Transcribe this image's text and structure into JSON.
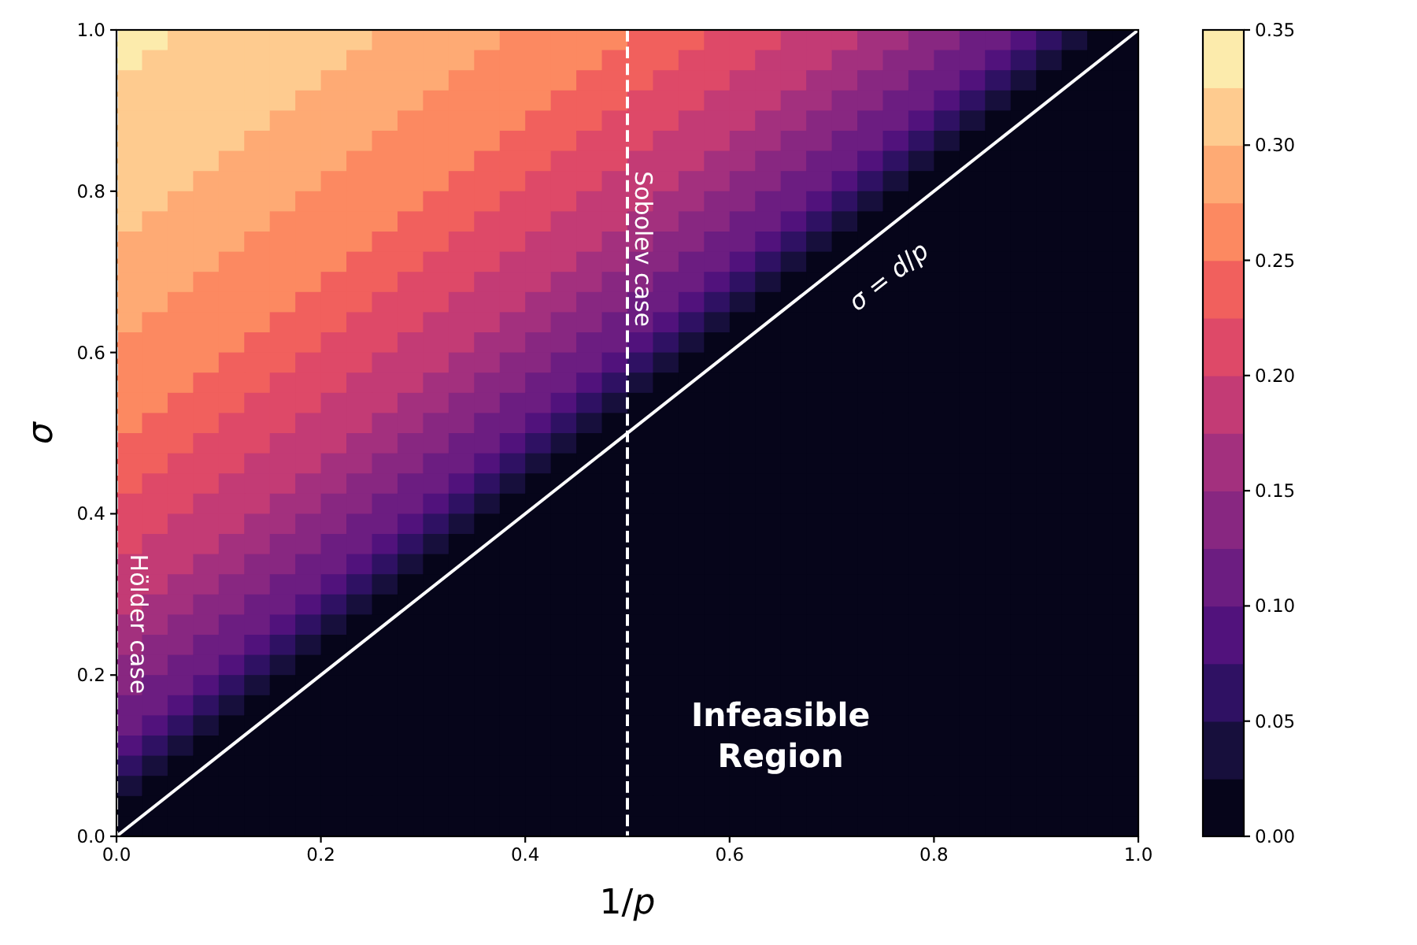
{
  "chart_data": {
    "type": "heatmap",
    "xlabel": "1/p",
    "ylabel": "σ",
    "x": [
      0.0125,
      0.0375,
      0.0625,
      0.0875,
      0.1125,
      0.1375,
      0.1625,
      0.1875,
      0.2125,
      0.2375,
      0.2625,
      0.2875,
      0.3125,
      0.3375,
      0.3625,
      0.3875,
      0.4125,
      0.4375,
      0.4625,
      0.4875,
      0.5125,
      0.5375,
      0.5625,
      0.5875,
      0.6125,
      0.6375,
      0.6625,
      0.6875,
      0.7125,
      0.7375,
      0.7625,
      0.7875,
      0.8125,
      0.8375,
      0.8625,
      0.8875,
      0.9125,
      0.9375,
      0.9625,
      0.9875
    ],
    "y": [
      0.9875,
      0.9625,
      0.9375,
      0.9125,
      0.8875,
      0.8625,
      0.8375,
      0.8125,
      0.7875,
      0.7625,
      0.7375,
      0.7125,
      0.6875,
      0.6625,
      0.6375,
      0.6125,
      0.5875,
      0.5625,
      0.5375,
      0.5125,
      0.4875,
      0.4625,
      0.4375,
      0.4125,
      0.3875,
      0.3625,
      0.3375,
      0.3125,
      0.2875,
      0.2625,
      0.2375,
      0.2125,
      0.1875,
      0.1625,
      0.1375,
      0.1125,
      0.0875,
      0.0625,
      0.0375,
      0.0125
    ],
    "cells": [
      [
        0.33,
        0.33,
        0.32,
        0.32,
        0.32,
        0.31,
        0.31,
        0.31,
        0.3,
        0.3,
        0.29,
        0.29,
        0.29,
        0.28,
        0.28,
        0.27,
        0.27,
        0.26,
        0.26,
        0.25,
        0.24,
        0.24,
        0.23,
        0.22,
        0.21,
        0.21,
        0.19,
        0.19,
        0.18,
        0.17,
        0.16,
        0.14,
        0.13,
        0.12,
        0.1,
        0.08,
        0.07,
        0.04,
        0.02,
        0
      ],
      [
        0.33,
        0.32,
        0.32,
        0.32,
        0.31,
        0.31,
        0.31,
        0.3,
        0.3,
        0.29,
        0.29,
        0.29,
        0.28,
        0.28,
        0.27,
        0.27,
        0.26,
        0.26,
        0.25,
        0.24,
        0.24,
        0.23,
        0.22,
        0.21,
        0.21,
        0.19,
        0.19,
        0.18,
        0.17,
        0.16,
        0.14,
        0.13,
        0.12,
        0.1,
        0.08,
        0.07,
        0.04,
        0.02,
        0,
        0
      ],
      [
        0.32,
        0.32,
        0.32,
        0.31,
        0.31,
        0.31,
        0.3,
        0.3,
        0.29,
        0.29,
        0.29,
        0.28,
        0.28,
        0.27,
        0.27,
        0.26,
        0.26,
        0.25,
        0.24,
        0.24,
        0.23,
        0.22,
        0.21,
        0.21,
        0.19,
        0.19,
        0.18,
        0.17,
        0.16,
        0.14,
        0.13,
        0.12,
        0.1,
        0.08,
        0.07,
        0.04,
        0.02,
        0,
        0,
        0
      ],
      [
        0.32,
        0.32,
        0.31,
        0.31,
        0.31,
        0.3,
        0.3,
        0.29,
        0.29,
        0.29,
        0.28,
        0.28,
        0.27,
        0.27,
        0.26,
        0.26,
        0.25,
        0.24,
        0.24,
        0.23,
        0.22,
        0.21,
        0.21,
        0.19,
        0.19,
        0.18,
        0.17,
        0.16,
        0.14,
        0.13,
        0.12,
        0.1,
        0.08,
        0.07,
        0.04,
        0.02,
        0,
        0,
        0,
        0
      ],
      [
        0.32,
        0.31,
        0.31,
        0.31,
        0.3,
        0.3,
        0.29,
        0.29,
        0.29,
        0.28,
        0.28,
        0.27,
        0.27,
        0.26,
        0.26,
        0.25,
        0.24,
        0.24,
        0.23,
        0.22,
        0.21,
        0.21,
        0.19,
        0.19,
        0.18,
        0.17,
        0.16,
        0.14,
        0.13,
        0.12,
        0.1,
        0.08,
        0.07,
        0.04,
        0.02,
        0,
        0,
        0,
        0,
        0
      ],
      [
        0.31,
        0.31,
        0.31,
        0.3,
        0.3,
        0.29,
        0.29,
        0.29,
        0.28,
        0.28,
        0.27,
        0.27,
        0.26,
        0.26,
        0.25,
        0.24,
        0.24,
        0.23,
        0.22,
        0.21,
        0.21,
        0.19,
        0.19,
        0.18,
        0.17,
        0.16,
        0.14,
        0.13,
        0.12,
        0.1,
        0.08,
        0.07,
        0.04,
        0.02,
        0,
        0,
        0,
        0,
        0,
        0
      ],
      [
        0.31,
        0.31,
        0.3,
        0.3,
        0.29,
        0.29,
        0.29,
        0.28,
        0.28,
        0.27,
        0.27,
        0.26,
        0.26,
        0.25,
        0.24,
        0.24,
        0.23,
        0.22,
        0.21,
        0.21,
        0.19,
        0.19,
        0.18,
        0.17,
        0.16,
        0.14,
        0.13,
        0.12,
        0.1,
        0.08,
        0.07,
        0.04,
        0.02,
        0,
        0,
        0,
        0,
        0,
        0,
        0
      ],
      [
        0.31,
        0.3,
        0.3,
        0.29,
        0.29,
        0.29,
        0.28,
        0.28,
        0.27,
        0.27,
        0.26,
        0.26,
        0.25,
        0.24,
        0.24,
        0.23,
        0.22,
        0.21,
        0.21,
        0.19,
        0.19,
        0.18,
        0.17,
        0.16,
        0.14,
        0.13,
        0.12,
        0.1,
        0.08,
        0.07,
        0.04,
        0.02,
        0,
        0,
        0,
        0,
        0,
        0,
        0,
        0
      ],
      [
        0.3,
        0.3,
        0.29,
        0.29,
        0.29,
        0.28,
        0.28,
        0.27,
        0.27,
        0.26,
        0.26,
        0.25,
        0.24,
        0.24,
        0.23,
        0.22,
        0.21,
        0.21,
        0.19,
        0.19,
        0.18,
        0.17,
        0.16,
        0.14,
        0.13,
        0.12,
        0.1,
        0.08,
        0.07,
        0.04,
        0.02,
        0,
        0,
        0,
        0,
        0,
        0,
        0,
        0,
        0
      ],
      [
        0.3,
        0.29,
        0.29,
        0.29,
        0.28,
        0.28,
        0.27,
        0.27,
        0.26,
        0.26,
        0.25,
        0.24,
        0.24,
        0.23,
        0.22,
        0.21,
        0.21,
        0.19,
        0.19,
        0.18,
        0.17,
        0.16,
        0.14,
        0.13,
        0.12,
        0.1,
        0.08,
        0.07,
        0.04,
        0.02,
        0,
        0,
        0,
        0,
        0,
        0,
        0,
        0,
        0,
        0
      ],
      [
        0.29,
        0.29,
        0.29,
        0.28,
        0.28,
        0.27,
        0.27,
        0.26,
        0.26,
        0.25,
        0.24,
        0.24,
        0.23,
        0.22,
        0.21,
        0.21,
        0.19,
        0.19,
        0.18,
        0.17,
        0.16,
        0.14,
        0.13,
        0.12,
        0.1,
        0.08,
        0.07,
        0.04,
        0.02,
        0,
        0,
        0,
        0,
        0,
        0,
        0,
        0,
        0,
        0,
        0
      ],
      [
        0.29,
        0.29,
        0.28,
        0.28,
        0.27,
        0.27,
        0.26,
        0.26,
        0.25,
        0.24,
        0.24,
        0.23,
        0.22,
        0.21,
        0.21,
        0.19,
        0.19,
        0.18,
        0.17,
        0.16,
        0.14,
        0.13,
        0.12,
        0.1,
        0.08,
        0.07,
        0.04,
        0.02,
        0,
        0,
        0,
        0,
        0,
        0,
        0,
        0,
        0,
        0,
        0,
        0
      ],
      [
        0.29,
        0.28,
        0.28,
        0.27,
        0.27,
        0.26,
        0.26,
        0.25,
        0.24,
        0.24,
        0.23,
        0.22,
        0.21,
        0.21,
        0.19,
        0.19,
        0.18,
        0.17,
        0.16,
        0.14,
        0.13,
        0.12,
        0.1,
        0.08,
        0.07,
        0.04,
        0.02,
        0,
        0,
        0,
        0,
        0,
        0,
        0,
        0,
        0,
        0,
        0,
        0,
        0
      ],
      [
        0.28,
        0.28,
        0.27,
        0.27,
        0.26,
        0.26,
        0.25,
        0.24,
        0.24,
        0.23,
        0.22,
        0.21,
        0.21,
        0.19,
        0.19,
        0.18,
        0.17,
        0.16,
        0.14,
        0.13,
        0.12,
        0.1,
        0.08,
        0.07,
        0.04,
        0.02,
        0,
        0,
        0,
        0,
        0,
        0,
        0,
        0,
        0,
        0,
        0,
        0,
        0,
        0
      ],
      [
        0.28,
        0.27,
        0.27,
        0.26,
        0.26,
        0.25,
        0.24,
        0.24,
        0.23,
        0.22,
        0.21,
        0.21,
        0.19,
        0.19,
        0.18,
        0.17,
        0.16,
        0.14,
        0.13,
        0.12,
        0.1,
        0.08,
        0.07,
        0.04,
        0.02,
        0,
        0,
        0,
        0,
        0,
        0,
        0,
        0,
        0,
        0,
        0,
        0,
        0,
        0,
        0
      ],
      [
        0.27,
        0.27,
        0.26,
        0.26,
        0.25,
        0.24,
        0.24,
        0.23,
        0.22,
        0.21,
        0.21,
        0.19,
        0.19,
        0.18,
        0.17,
        0.16,
        0.14,
        0.13,
        0.12,
        0.1,
        0.08,
        0.07,
        0.04,
        0.02,
        0,
        0,
        0,
        0,
        0,
        0,
        0,
        0,
        0,
        0,
        0,
        0,
        0,
        0,
        0,
        0
      ],
      [
        0.27,
        0.26,
        0.26,
        0.25,
        0.24,
        0.24,
        0.23,
        0.22,
        0.21,
        0.21,
        0.19,
        0.19,
        0.18,
        0.17,
        0.16,
        0.14,
        0.13,
        0.12,
        0.1,
        0.08,
        0.07,
        0.04,
        0.02,
        0,
        0,
        0,
        0,
        0,
        0,
        0,
        0,
        0,
        0,
        0,
        0,
        0,
        0,
        0,
        0,
        0
      ],
      [
        0.26,
        0.26,
        0.25,
        0.24,
        0.24,
        0.23,
        0.22,
        0.21,
        0.21,
        0.19,
        0.19,
        0.18,
        0.17,
        0.16,
        0.14,
        0.13,
        0.12,
        0.1,
        0.08,
        0.07,
        0.04,
        0.02,
        0,
        0,
        0,
        0,
        0,
        0,
        0,
        0,
        0,
        0,
        0,
        0,
        0,
        0,
        0,
        0,
        0,
        0
      ],
      [
        0.26,
        0.25,
        0.24,
        0.24,
        0.23,
        0.22,
        0.21,
        0.21,
        0.19,
        0.19,
        0.18,
        0.17,
        0.16,
        0.14,
        0.13,
        0.12,
        0.1,
        0.08,
        0.07,
        0.04,
        0.02,
        0,
        0,
        0,
        0,
        0,
        0,
        0,
        0,
        0,
        0,
        0,
        0,
        0,
        0,
        0,
        0,
        0,
        0,
        0
      ],
      [
        0.25,
        0.24,
        0.24,
        0.23,
        0.22,
        0.21,
        0.21,
        0.19,
        0.19,
        0.18,
        0.17,
        0.16,
        0.14,
        0.13,
        0.12,
        0.1,
        0.08,
        0.07,
        0.04,
        0.02,
        0,
        0,
        0,
        0,
        0,
        0,
        0,
        0,
        0,
        0,
        0,
        0,
        0,
        0,
        0,
        0,
        0,
        0,
        0,
        0
      ],
      [
        0.24,
        0.24,
        0.23,
        0.22,
        0.21,
        0.21,
        0.19,
        0.19,
        0.18,
        0.17,
        0.16,
        0.14,
        0.13,
        0.12,
        0.1,
        0.08,
        0.07,
        0.04,
        0.02,
        0,
        0,
        0,
        0,
        0,
        0,
        0,
        0,
        0,
        0,
        0,
        0,
        0,
        0,
        0,
        0,
        0,
        0,
        0,
        0,
        0
      ],
      [
        0.24,
        0.23,
        0.22,
        0.21,
        0.21,
        0.19,
        0.19,
        0.18,
        0.17,
        0.16,
        0.14,
        0.13,
        0.12,
        0.1,
        0.08,
        0.07,
        0.04,
        0.02,
        0,
        0,
        0,
        0,
        0,
        0,
        0,
        0,
        0,
        0,
        0,
        0,
        0,
        0,
        0,
        0,
        0,
        0,
        0,
        0,
        0,
        0
      ],
      [
        0.23,
        0.22,
        0.21,
        0.21,
        0.19,
        0.19,
        0.18,
        0.17,
        0.16,
        0.14,
        0.13,
        0.12,
        0.1,
        0.08,
        0.07,
        0.04,
        0.02,
        0,
        0,
        0,
        0,
        0,
        0,
        0,
        0,
        0,
        0,
        0,
        0,
        0,
        0,
        0,
        0,
        0,
        0,
        0,
        0,
        0,
        0,
        0
      ],
      [
        0.22,
        0.21,
        0.21,
        0.19,
        0.19,
        0.18,
        0.17,
        0.16,
        0.14,
        0.13,
        0.12,
        0.1,
        0.08,
        0.07,
        0.04,
        0.02,
        0,
        0,
        0,
        0,
        0,
        0,
        0,
        0,
        0,
        0,
        0,
        0,
        0,
        0,
        0,
        0,
        0,
        0,
        0,
        0,
        0,
        0,
        0,
        0
      ],
      [
        0.21,
        0.21,
        0.19,
        0.19,
        0.18,
        0.17,
        0.16,
        0.14,
        0.13,
        0.12,
        0.1,
        0.08,
        0.07,
        0.04,
        0.02,
        0,
        0,
        0,
        0,
        0,
        0,
        0,
        0,
        0,
        0,
        0,
        0,
        0,
        0,
        0,
        0,
        0,
        0,
        0,
        0,
        0,
        0,
        0,
        0,
        0
      ],
      [
        0.21,
        0.19,
        0.19,
        0.18,
        0.17,
        0.16,
        0.14,
        0.13,
        0.12,
        0.1,
        0.08,
        0.07,
        0.04,
        0.02,
        0,
        0,
        0,
        0,
        0,
        0,
        0,
        0,
        0,
        0,
        0,
        0,
        0,
        0,
        0,
        0,
        0,
        0,
        0,
        0,
        0,
        0,
        0,
        0,
        0,
        0
      ],
      [
        0.19,
        0.19,
        0.18,
        0.17,
        0.16,
        0.14,
        0.13,
        0.12,
        0.1,
        0.08,
        0.07,
        0.04,
        0.02,
        0,
        0,
        0,
        0,
        0,
        0,
        0,
        0,
        0,
        0,
        0,
        0,
        0,
        0,
        0,
        0,
        0,
        0,
        0,
        0,
        0,
        0,
        0,
        0,
        0,
        0,
        0
      ],
      [
        0.19,
        0.18,
        0.17,
        0.16,
        0.14,
        0.13,
        0.12,
        0.1,
        0.08,
        0.07,
        0.04,
        0.02,
        0,
        0,
        0,
        0,
        0,
        0,
        0,
        0,
        0,
        0,
        0,
        0,
        0,
        0,
        0,
        0,
        0,
        0,
        0,
        0,
        0,
        0,
        0,
        0,
        0,
        0,
        0,
        0
      ],
      [
        0.18,
        0.17,
        0.16,
        0.14,
        0.13,
        0.12,
        0.1,
        0.08,
        0.07,
        0.04,
        0.02,
        0,
        0,
        0,
        0,
        0,
        0,
        0,
        0,
        0,
        0,
        0,
        0,
        0,
        0,
        0,
        0,
        0,
        0,
        0,
        0,
        0,
        0,
        0,
        0,
        0,
        0,
        0,
        0,
        0
      ],
      [
        0.17,
        0.16,
        0.14,
        0.13,
        0.12,
        0.1,
        0.08,
        0.07,
        0.04,
        0.02,
        0,
        0,
        0,
        0,
        0,
        0,
        0,
        0,
        0,
        0,
        0,
        0,
        0,
        0,
        0,
        0,
        0,
        0,
        0,
        0,
        0,
        0,
        0,
        0,
        0,
        0,
        0,
        0,
        0,
        0
      ],
      [
        0.16,
        0.14,
        0.13,
        0.12,
        0.1,
        0.08,
        0.07,
        0.04,
        0.02,
        0,
        0,
        0,
        0,
        0,
        0,
        0,
        0,
        0,
        0,
        0,
        0,
        0,
        0,
        0,
        0,
        0,
        0,
        0,
        0,
        0,
        0,
        0,
        0,
        0,
        0,
        0,
        0,
        0,
        0,
        0
      ],
      [
        0.14,
        0.13,
        0.12,
        0.1,
        0.08,
        0.07,
        0.04,
        0.02,
        0,
        0,
        0,
        0,
        0,
        0,
        0,
        0,
        0,
        0,
        0,
        0,
        0,
        0,
        0,
        0,
        0,
        0,
        0,
        0,
        0,
        0,
        0,
        0,
        0,
        0,
        0,
        0,
        0,
        0,
        0,
        0
      ],
      [
        0.13,
        0.12,
        0.1,
        0.08,
        0.07,
        0.04,
        0.02,
        0,
        0,
        0,
        0,
        0,
        0,
        0,
        0,
        0,
        0,
        0,
        0,
        0,
        0,
        0,
        0,
        0,
        0,
        0,
        0,
        0,
        0,
        0,
        0,
        0,
        0,
        0,
        0,
        0,
        0,
        0,
        0,
        0
      ],
      [
        0.12,
        0.1,
        0.08,
        0.07,
        0.04,
        0.02,
        0,
        0,
        0,
        0,
        0,
        0,
        0,
        0,
        0,
        0,
        0,
        0,
        0,
        0,
        0,
        0,
        0,
        0,
        0,
        0,
        0,
        0,
        0,
        0,
        0,
        0,
        0,
        0,
        0,
        0,
        0,
        0,
        0,
        0
      ],
      [
        0.1,
        0.08,
        0.07,
        0.04,
        0.02,
        0,
        0,
        0,
        0,
        0,
        0,
        0,
        0,
        0,
        0,
        0,
        0,
        0,
        0,
        0,
        0,
        0,
        0,
        0,
        0,
        0,
        0,
        0,
        0,
        0,
        0,
        0,
        0,
        0,
        0,
        0,
        0,
        0,
        0,
        0
      ],
      [
        0.08,
        0.07,
        0.04,
        0.02,
        0,
        0,
        0,
        0,
        0,
        0,
        0,
        0,
        0,
        0,
        0,
        0,
        0,
        0,
        0,
        0,
        0,
        0,
        0,
        0,
        0,
        0,
        0,
        0,
        0,
        0,
        0,
        0,
        0,
        0,
        0,
        0,
        0,
        0,
        0,
        0
      ],
      [
        0.07,
        0.04,
        0.02,
        0,
        0,
        0,
        0,
        0,
        0,
        0,
        0,
        0,
        0,
        0,
        0,
        0,
        0,
        0,
        0,
        0,
        0,
        0,
        0,
        0,
        0,
        0,
        0,
        0,
        0,
        0,
        0,
        0,
        0,
        0,
        0,
        0,
        0,
        0,
        0,
        0
      ],
      [
        0.04,
        0.02,
        0,
        0,
        0,
        0,
        0,
        0,
        0,
        0,
        0,
        0,
        0,
        0,
        0,
        0,
        0,
        0,
        0,
        0,
        0,
        0,
        0,
        0,
        0,
        0,
        0,
        0,
        0,
        0,
        0,
        0,
        0,
        0,
        0,
        0,
        0,
        0,
        0,
        0
      ],
      [
        0.02,
        0,
        0,
        0,
        0,
        0,
        0,
        0,
        0,
        0,
        0,
        0,
        0,
        0,
        0,
        0,
        0,
        0,
        0,
        0,
        0,
        0,
        0,
        0,
        0,
        0,
        0,
        0,
        0,
        0,
        0,
        0,
        0,
        0,
        0,
        0,
        0,
        0,
        0,
        0
      ],
      [
        0,
        0,
        0,
        0,
        0,
        0,
        0,
        0,
        0,
        0,
        0,
        0,
        0,
        0,
        0,
        0,
        0,
        0,
        0,
        0,
        0,
        0,
        0,
        0,
        0,
        0,
        0,
        0,
        0,
        0,
        0,
        0,
        0,
        0,
        0,
        0,
        0,
        0,
        0,
        0
      ]
    ],
    "colors": [
      "#06051a",
      "#170f3c",
      "#2f1163",
      "#51127c",
      "#6c1d81",
      "#882781",
      "#a3307e",
      "#c33b75",
      "#de4968",
      "#f1605d",
      "#fc8961",
      "#feaa74",
      "#fecb8f",
      "#fcebac"
    ],
    "clim": [
      0,
      0.35
    ],
    "cticks": [
      {
        "value": 0,
        "label": "0.00"
      },
      0.05,
      {
        "value": 0.1,
        "label": "0.10"
      },
      0.15,
      {
        "value": 0.2,
        "label": "0.20"
      },
      0.25,
      {
        "value": 0.3,
        "label": "0.30"
      },
      0.35
    ],
    "xlim": [
      0,
      1
    ],
    "xticks": [
      {
        "value": 0,
        "label": "0.0"
      },
      0.2,
      0.4,
      0.6,
      0.8,
      {
        "value": 1,
        "label": "1.0"
      }
    ],
    "ylim": [
      0,
      1
    ],
    "yticks": [
      {
        "value": 0,
        "label": "0.0"
      },
      0.2,
      0.4,
      0.6,
      0.8,
      {
        "value": 1,
        "label": "1.0"
      }
    ],
    "ref_lines": [
      {
        "axis": "x",
        "value": 0,
        "label": "Hölder case",
        "color": "#ffffff",
        "line_style": "dashed"
      },
      {
        "axis": "x",
        "value": 0.5,
        "label": "Sobolev case",
        "color": "#ffffff",
        "line_style": "dashed"
      }
    ],
    "series": [
      {
        "type": "line",
        "name": "σ = d/p",
        "color": "#ffffff",
        "x": [
          0,
          1
        ],
        "values": [
          0,
          1
        ]
      }
    ],
    "annotations": [
      "Infeasible\nRegion"
    ]
  }
}
